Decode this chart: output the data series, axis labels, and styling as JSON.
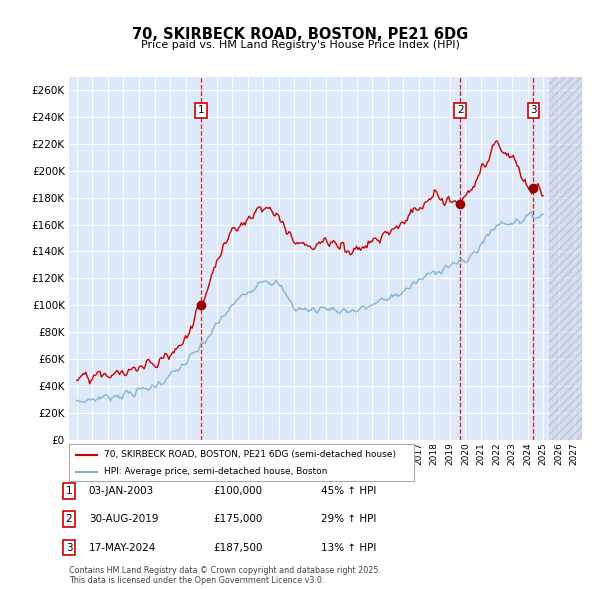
{
  "title": "70, SKIRBECK ROAD, BOSTON, PE21 6DG",
  "subtitle": "Price paid vs. HM Land Registry's House Price Index (HPI)",
  "ylim": [
    0,
    270000
  ],
  "yticks": [
    0,
    20000,
    40000,
    60000,
    80000,
    100000,
    120000,
    140000,
    160000,
    180000,
    200000,
    220000,
    240000,
    260000
  ],
  "xlim_start": 1994.5,
  "xlim_end": 2027.5,
  "transactions": [
    {
      "date_num": 2003.01,
      "price": 100000,
      "label": "1"
    },
    {
      "date_num": 2019.66,
      "price": 175000,
      "label": "2"
    },
    {
      "date_num": 2024.38,
      "price": 187500,
      "label": "3"
    }
  ],
  "transaction_labels": [
    {
      "num": "1",
      "date": "03-JAN-2003",
      "price": "£100,000",
      "hpi_pct": "45% ↑ HPI"
    },
    {
      "num": "2",
      "date": "30-AUG-2019",
      "price": "£175,000",
      "hpi_pct": "29% ↑ HPI"
    },
    {
      "num": "3",
      "date": "17-MAY-2024",
      "price": "£187,500",
      "hpi_pct": "13% ↑ HPI"
    }
  ],
  "legend_line1": "70, SKIRBECK ROAD, BOSTON, PE21 6DG (semi-detached house)",
  "legend_line2": "HPI: Average price, semi-detached house, Boston",
  "footer": "Contains HM Land Registry data © Crown copyright and database right 2025.\nThis data is licensed under the Open Government Licence v3.0.",
  "bg_color": "#dde8f8",
  "grid_color": "#ffffff",
  "dashed_line_color": "#cc0000",
  "property_line_color": "#cc0000",
  "hpi_line_color": "#7ab0d4",
  "future_x": 2025.4,
  "hpi_data": {
    "years": [
      1995,
      1996,
      1997,
      1998,
      1999,
      2000,
      2001,
      2002,
      2003,
      2004,
      2005,
      2006,
      2007,
      2008,
      2009,
      2010,
      2011,
      2012,
      2013,
      2014,
      2015,
      2016,
      2017,
      2018,
      2019,
      2020,
      2021,
      2022,
      2023,
      2024,
      2025
    ],
    "values": [
      28000,
      30000,
      32000,
      33500,
      36000,
      40000,
      47000,
      57000,
      69000,
      85000,
      100000,
      110000,
      120000,
      115000,
      98000,
      96000,
      98000,
      96000,
      96000,
      100000,
      105000,
      110000,
      118000,
      125000,
      130000,
      132000,
      145000,
      160000,
      162000,
      165000,
      168000
    ]
  },
  "prop_data": {
    "years": [
      1995,
      1996,
      1997,
      1998,
      1999,
      2000,
      2001,
      2002,
      2003,
      2004,
      2005,
      2006,
      2007,
      2008,
      2009,
      2010,
      2011,
      2012,
      2013,
      2014,
      2015,
      2016,
      2017,
      2018,
      2019,
      2020,
      2021,
      2022,
      2023,
      2024,
      2025
    ],
    "values": [
      44000,
      46000,
      48000,
      50000,
      53000,
      57000,
      63000,
      75000,
      100000,
      135000,
      155000,
      165000,
      175000,
      165000,
      148000,
      143000,
      148000,
      143000,
      142000,
      148000,
      155000,
      162000,
      172000,
      182000,
      175000,
      178000,
      198000,
      220000,
      210000,
      187500,
      185000
    ]
  }
}
